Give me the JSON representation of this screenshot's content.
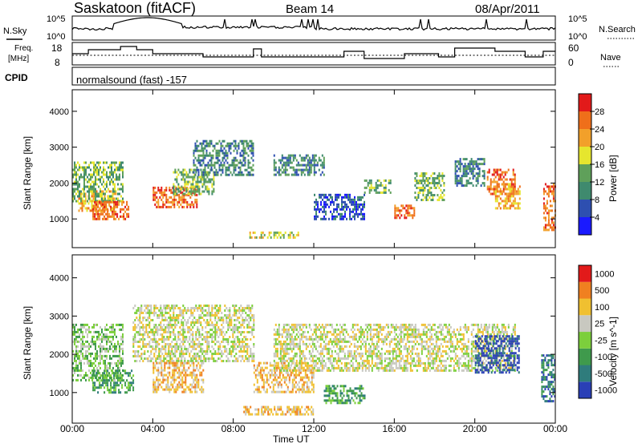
{
  "header": {
    "title": "Saskatoon (fitACF)",
    "beam": "Beam 14",
    "date": "08/Apr/2011"
  },
  "panels": {
    "noise": {
      "left_label": "N.Sky",
      "right_label": "N.Search",
      "left_ticks": [
        "10^5",
        "10^0"
      ],
      "right_ticks": [
        "10^5",
        "10^0"
      ]
    },
    "freq": {
      "left_label_line1": "Freq.",
      "left_label_line2": "[MHz]",
      "right_label": "Nave",
      "left_ticks": [
        "18",
        "8"
      ],
      "right_ticks": [
        "60",
        "0"
      ]
    },
    "cpid": {
      "label": "CPID",
      "text": "normalsound (fast) -157"
    }
  },
  "x_ticks": [
    "00:00",
    "04:00",
    "08:00",
    "12:00",
    "16:00",
    "20:00",
    "00:00"
  ],
  "xlabel": "Time UT",
  "colors": {
    "power_scale": [
      "#1a1aff",
      "#2e4fb0",
      "#3f8a6e",
      "#5fa05a",
      "#e6e62e",
      "#f2a02a",
      "#ef6f1a",
      "#e21a1a"
    ],
    "velocity_scale": [
      "#2a3fb6",
      "#2f7c7c",
      "#3f9a4c",
      "#7ccf3c",
      "#c8c8c0",
      "#f0c030",
      "#f08020",
      "#e21a1a"
    ]
  },
  "chart_data": [
    {
      "type": "heatmap",
      "panel": "power",
      "xlabel": "",
      "ylabel": "Slant Range [km]",
      "y_ticks": [
        "1000",
        "2000",
        "3000",
        "4000"
      ],
      "ylim": [
        200,
        4600
      ],
      "xlim_hours": [
        0,
        24
      ],
      "colorbar": {
        "label": "Power [dB]",
        "ticks": [
          "4",
          "8",
          "12",
          "16",
          "20",
          "24",
          "28"
        ]
      },
      "regions": [
        {
          "t": [
            0.3,
            2.2
          ],
          "r": [
            1200,
            1800
          ],
          "level": 5
        },
        {
          "t": [
            0.0,
            2.5
          ],
          "r": [
            1500,
            2600
          ],
          "level": 3
        },
        {
          "t": [
            1.0,
            2.8
          ],
          "r": [
            1000,
            1500
          ],
          "level": 6
        },
        {
          "t": [
            4.0,
            6.2
          ],
          "r": [
            1300,
            1900
          ],
          "level": 6
        },
        {
          "t": [
            5.0,
            7.0
          ],
          "r": [
            1700,
            2400
          ],
          "level": 3
        },
        {
          "t": [
            6.0,
            9.0
          ],
          "r": [
            2200,
            3200
          ],
          "level": 2
        },
        {
          "t": [
            8.8,
            11.2
          ],
          "r": [
            500,
            650
          ],
          "level": 4
        },
        {
          "t": [
            10.0,
            12.5
          ],
          "r": [
            2200,
            2800
          ],
          "level": 2
        },
        {
          "t": [
            12.0,
            14.5
          ],
          "r": [
            1000,
            1700
          ],
          "level": 1
        },
        {
          "t": [
            14.5,
            15.8
          ],
          "r": [
            1700,
            2100
          ],
          "level": 3
        },
        {
          "t": [
            16.0,
            17.0
          ],
          "r": [
            1000,
            1400
          ],
          "level": 6
        },
        {
          "t": [
            17.0,
            18.5
          ],
          "r": [
            1500,
            2300
          ],
          "level": 3
        },
        {
          "t": [
            19.0,
            20.5
          ],
          "r": [
            1900,
            2700
          ],
          "level": 2
        },
        {
          "t": [
            20.6,
            22.0
          ],
          "r": [
            1700,
            2400
          ],
          "level": 6
        },
        {
          "t": [
            21.0,
            22.2
          ],
          "r": [
            1300,
            2000
          ],
          "level": 5
        },
        {
          "t": [
            23.4,
            24.0
          ],
          "r": [
            700,
            2000
          ],
          "level": 6
        }
      ]
    },
    {
      "type": "heatmap",
      "panel": "velocity",
      "xlabel": "Time UT",
      "ylabel": "Slant Range [km]",
      "y_ticks": [
        "1000",
        "2000",
        "3000",
        "4000"
      ],
      "ylim": [
        200,
        4600
      ],
      "xlim_hours": [
        0,
        24
      ],
      "colorbar": {
        "label": "Velocity [m s^-1]",
        "ticks": [
          "1000",
          "500",
          "100",
          "25",
          "-25",
          "-100",
          "-500",
          "-1000"
        ]
      },
      "regions": [
        {
          "t": [
            0.0,
            2.5
          ],
          "r": [
            1300,
            2800
          ],
          "level": 3
        },
        {
          "t": [
            1.0,
            3.0
          ],
          "r": [
            1000,
            1600
          ],
          "level": 2
        },
        {
          "t": [
            3.0,
            9.0
          ],
          "r": [
            1800,
            3300
          ],
          "level": 4
        },
        {
          "t": [
            4.0,
            6.5
          ],
          "r": [
            1000,
            1800
          ],
          "level": 5
        },
        {
          "t": [
            8.5,
            12.0
          ],
          "r": [
            400,
            650
          ],
          "level": 5
        },
        {
          "t": [
            9.0,
            12.0
          ],
          "r": [
            1000,
            1800
          ],
          "level": 5
        },
        {
          "t": [
            10.0,
            22.0
          ],
          "r": [
            1600,
            2800
          ],
          "level": 4
        },
        {
          "t": [
            12.5,
            14.5
          ],
          "r": [
            700,
            1200
          ],
          "level": 2
        },
        {
          "t": [
            20.0,
            22.2
          ],
          "r": [
            1500,
            2500
          ],
          "level": 0
        },
        {
          "t": [
            23.3,
            24.0
          ],
          "r": [
            800,
            2000
          ],
          "level": 1
        }
      ]
    }
  ]
}
